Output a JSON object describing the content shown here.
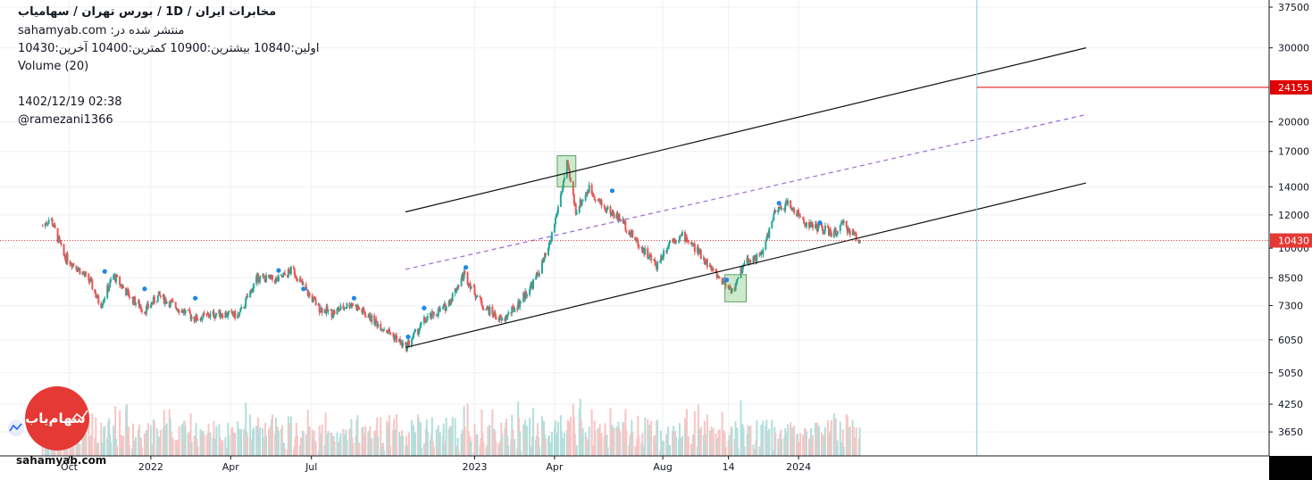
{
  "header": {
    "title": "مخابرات ایران / 1D / بورس تهران / سهامیاب",
    "published": "منتشر شده در: sahamyab.com",
    "ohlc": "اولین:10840  بیشترین:10900  کمترین:10400  آخرین:10430",
    "volume": "Volume (20)",
    "datetime": "1402/12/19 02:38",
    "author": "@ramezani1366"
  },
  "footer": {
    "site": "sahamyab.com",
    "logo_text": "سهام‌یاب"
  },
  "colors": {
    "up": "#26a69a",
    "down": "#ef5350",
    "up_vol": "#b2dfdb",
    "down_vol": "#f7c5c4",
    "resistance": "#e00000",
    "last": "#e53935",
    "mid": "#9c6ad8",
    "grid": "#eef0f3",
    "logo": "#e53935"
  },
  "chart_data": {
    "type": "candlestick",
    "title": "مخابرات ایران / 1D / بورس تهران / سهامیاب",
    "y_scale": "log",
    "ylim": [
      3200,
      39000
    ],
    "y_ticks": [
      37500,
      30000,
      24155,
      20000,
      17000,
      14000,
      12000,
      10430,
      10000,
      8500,
      7300,
      6050,
      5050,
      4250,
      3650
    ],
    "x_ticks": [
      {
        "label": "Oct",
        "date": "2021-10-01"
      },
      {
        "label": "2022",
        "date": "2022-01-01"
      },
      {
        "label": "Apr",
        "date": "2022-04-01"
      },
      {
        "label": "Jul",
        "date": "2022-07-01"
      },
      {
        "label": "2023",
        "date": "2023-01-01"
      },
      {
        "label": "Apr",
        "date": "2023-04-01"
      },
      {
        "label": "Aug",
        "date": "2023-08-01"
      },
      {
        "label": "14",
        "date": "2023-10-14"
      },
      {
        "label": "2024",
        "date": "2024-01-01"
      }
    ],
    "last_price": 10430,
    "last_price_label": "10430",
    "resistance_level": 24155,
    "resistance_label": "24155",
    "price_path": [
      {
        "date": "2021-09-01",
        "price": 11300
      },
      {
        "date": "2021-09-10",
        "price": 11800
      },
      {
        "date": "2021-09-25",
        "price": 9600
      },
      {
        "date": "2021-10-10",
        "price": 9000
      },
      {
        "date": "2021-10-25",
        "price": 8300
      },
      {
        "date": "2021-11-05",
        "price": 7300
      },
      {
        "date": "2021-11-20",
        "price": 8600
      },
      {
        "date": "2021-12-10",
        "price": 7600
      },
      {
        "date": "2021-12-25",
        "price": 7100
      },
      {
        "date": "2022-01-10",
        "price": 7700
      },
      {
        "date": "2022-02-01",
        "price": 7200
      },
      {
        "date": "2022-02-20",
        "price": 6800
      },
      {
        "date": "2022-03-20",
        "price": 7000
      },
      {
        "date": "2022-04-10",
        "price": 6900
      },
      {
        "date": "2022-05-01",
        "price": 8500
      },
      {
        "date": "2022-05-25",
        "price": 8400
      },
      {
        "date": "2022-06-10",
        "price": 8900
      },
      {
        "date": "2022-06-25",
        "price": 7900
      },
      {
        "date": "2022-07-10",
        "price": 7200
      },
      {
        "date": "2022-07-25",
        "price": 7000
      },
      {
        "date": "2022-08-15",
        "price": 7400
      },
      {
        "date": "2022-09-10",
        "price": 6700
      },
      {
        "date": "2022-10-01",
        "price": 6200
      },
      {
        "date": "2022-10-15",
        "price": 5800
      },
      {
        "date": "2022-11-05",
        "price": 6700
      },
      {
        "date": "2022-12-01",
        "price": 7300
      },
      {
        "date": "2022-12-20",
        "price": 8700
      },
      {
        "date": "2023-01-10",
        "price": 7300
      },
      {
        "date": "2023-02-01",
        "price": 6700
      },
      {
        "date": "2023-02-20",
        "price": 7400
      },
      {
        "date": "2023-03-10",
        "price": 8400
      },
      {
        "date": "2023-03-25",
        "price": 9900
      },
      {
        "date": "2023-04-05",
        "price": 12500
      },
      {
        "date": "2023-04-15",
        "price": 15800
      },
      {
        "date": "2023-04-25",
        "price": 12300
      },
      {
        "date": "2023-05-10",
        "price": 13900
      },
      {
        "date": "2023-05-25",
        "price": 12600
      },
      {
        "date": "2023-06-15",
        "price": 11700
      },
      {
        "date": "2023-07-05",
        "price": 10200
      },
      {
        "date": "2023-07-25",
        "price": 9100
      },
      {
        "date": "2023-08-10",
        "price": 10500
      },
      {
        "date": "2023-08-25",
        "price": 10700
      },
      {
        "date": "2023-09-10",
        "price": 9800
      },
      {
        "date": "2023-10-01",
        "price": 8600
      },
      {
        "date": "2023-10-20",
        "price": 7900
      },
      {
        "date": "2023-11-01",
        "price": 9300
      },
      {
        "date": "2023-11-20",
        "price": 9600
      },
      {
        "date": "2023-12-05",
        "price": 12100
      },
      {
        "date": "2023-12-20",
        "price": 12800
      },
      {
        "date": "2024-01-10",
        "price": 11400
      },
      {
        "date": "2024-01-25",
        "price": 11200
      },
      {
        "date": "2024-02-10",
        "price": 10800
      },
      {
        "date": "2024-02-20",
        "price": 11400
      },
      {
        "date": "2024-03-01",
        "price": 10900
      },
      {
        "date": "2024-03-10",
        "price": 10430
      }
    ],
    "channel_lines": [
      {
        "name": "upper",
        "from": {
          "date": "2022-10-15",
          "price": 12200
        },
        "to": {
          "date": "2024-11-20",
          "price": 30000
        },
        "style": "solid"
      },
      {
        "name": "middle",
        "from": {
          "date": "2022-10-15",
          "price": 8900
        },
        "to": {
          "date": "2024-11-20",
          "price": 20800
        },
        "style": "dashed"
      },
      {
        "name": "lower",
        "from": {
          "date": "2022-10-15",
          "price": 5800
        },
        "to": {
          "date": "2024-11-20",
          "price": 14300
        },
        "style": "solid"
      }
    ],
    "highlight_boxes": [
      {
        "from": "2023-04-04",
        "to": "2023-04-25",
        "low": 14000,
        "high": 16600
      },
      {
        "from": "2023-10-10",
        "to": "2023-11-03",
        "low": 7450,
        "high": 8650
      }
    ],
    "vertical_marker": {
      "date": "2024-07-20"
    },
    "indicator_dots": [
      {
        "date": "2021-11-10",
        "price": 8800
      },
      {
        "date": "2021-12-25",
        "price": 8000
      },
      {
        "date": "2022-02-20",
        "price": 7600
      },
      {
        "date": "2022-05-25",
        "price": 8850
      },
      {
        "date": "2022-06-22",
        "price": 8000
      },
      {
        "date": "2022-08-18",
        "price": 7600
      },
      {
        "date": "2022-10-18",
        "price": 6150
      },
      {
        "date": "2022-11-05",
        "price": 7200
      },
      {
        "date": "2022-12-22",
        "price": 9000
      },
      {
        "date": "2023-06-05",
        "price": 13700
      },
      {
        "date": "2023-10-12",
        "price": 8400
      },
      {
        "date": "2023-12-10",
        "price": 12800
      },
      {
        "date": "2024-01-25",
        "price": 11500
      }
    ]
  }
}
